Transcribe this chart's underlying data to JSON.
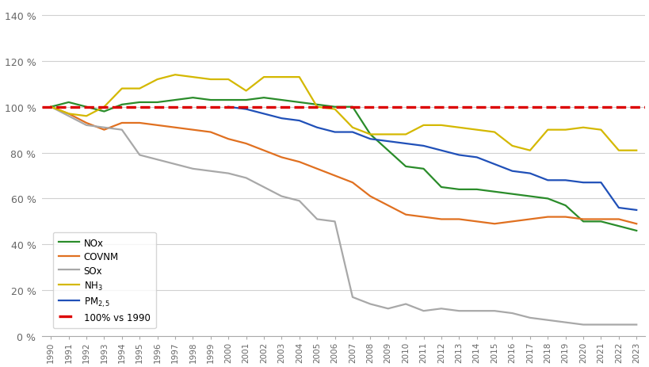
{
  "years_1990": [
    1990,
    1991,
    1992,
    1993,
    1994,
    1995,
    1996,
    1997,
    1998,
    1999,
    2000,
    2001,
    2002,
    2003,
    2004,
    2005,
    2006,
    2007,
    2008,
    2009,
    2010,
    2011,
    2012,
    2013,
    2014,
    2015,
    2016,
    2017,
    2018,
    2019,
    2020,
    2021,
    2022,
    2023
  ],
  "years_2000": [
    2000,
    2001,
    2002,
    2003,
    2004,
    2005,
    2006,
    2007,
    2008,
    2009,
    2010,
    2011,
    2012,
    2013,
    2014,
    2015,
    2016,
    2017,
    2018,
    2019,
    2020,
    2021,
    2022,
    2023
  ],
  "NOx": [
    100,
    102,
    100,
    98,
    101,
    102,
    102,
    103,
    104,
    103,
    103,
    103,
    104,
    103,
    102,
    101,
    100,
    100,
    88,
    81,
    74,
    73,
    65,
    64,
    64,
    63,
    62,
    61,
    60,
    57,
    50,
    50,
    48,
    46
  ],
  "COVNM": [
    100,
    97,
    93,
    90,
    93,
    93,
    92,
    91,
    90,
    89,
    86,
    84,
    81,
    78,
    76,
    73,
    70,
    67,
    61,
    57,
    53,
    52,
    51,
    51,
    50,
    49,
    50,
    51,
    52,
    52,
    51,
    51,
    51,
    49
  ],
  "SOx": [
    100,
    96,
    92,
    91,
    90,
    79,
    77,
    75,
    73,
    72,
    71,
    69,
    65,
    61,
    59,
    51,
    50,
    17,
    14,
    12,
    14,
    11,
    12,
    11,
    11,
    11,
    10,
    8,
    7,
    6,
    5,
    5,
    5,
    5
  ],
  "NH3": [
    100,
    97,
    96,
    100,
    108,
    108,
    112,
    114,
    113,
    112,
    112,
    107,
    113,
    113,
    113,
    100,
    99,
    91,
    88,
    88,
    88,
    92,
    92,
    91,
    90,
    89,
    83,
    81,
    90,
    90,
    91,
    90,
    81,
    81
  ],
  "PM25": [
    100,
    99,
    97,
    95,
    94,
    91,
    89,
    89,
    86,
    85,
    84,
    83,
    81,
    79,
    78,
    75,
    72,
    71,
    68,
    68,
    67,
    67,
    56,
    55
  ],
  "reference_line": 100,
  "colors": {
    "NOx": "#2a8c2a",
    "COVNM": "#e07020",
    "SOx": "#a8a8a8",
    "NH3": "#d4b800",
    "PM25": "#2050b8",
    "ref": "#dc0000"
  },
  "ylim": [
    0,
    145
  ],
  "yticks": [
    0,
    20,
    40,
    60,
    80,
    100,
    120,
    140
  ],
  "ytick_labels": [
    "0 %",
    "20 %",
    "40 %",
    "60 %",
    "80 %",
    "100 %",
    "120 %",
    "140 %"
  ],
  "background_color": "#ffffff",
  "grid_color": "#d0d0d0",
  "legend_labels": [
    "NOx",
    "COVNM",
    "SOx",
    "NH$_3$",
    "PM$_{2,5}$",
    "100% vs 1990"
  ]
}
